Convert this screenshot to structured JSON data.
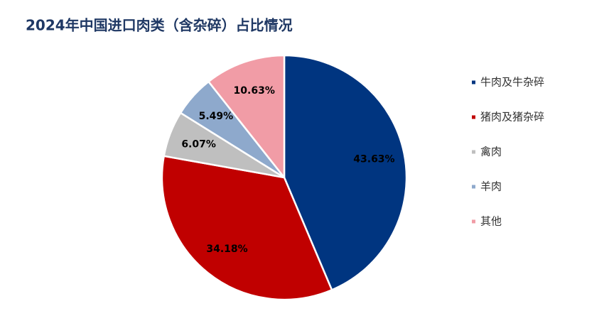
{
  "chart_data": {
    "type": "pie",
    "title": "2024年中国进口肉类（含杂碎）占比情况",
    "categories": [
      "牛肉及牛杂碎",
      "猪肉及猪杂碎",
      "禽肉",
      "羊肉",
      "其他"
    ],
    "values": [
      43.63,
      34.18,
      6.07,
      5.49,
      10.63
    ],
    "value_labels": [
      "43.63%",
      "34.18%",
      "6.07%",
      "5.49%",
      "10.63%"
    ],
    "colors": [
      "#003580",
      "#c00000",
      "#bfbfbf",
      "#8ea9cc",
      "#f19ca6"
    ],
    "legend": "right"
  }
}
